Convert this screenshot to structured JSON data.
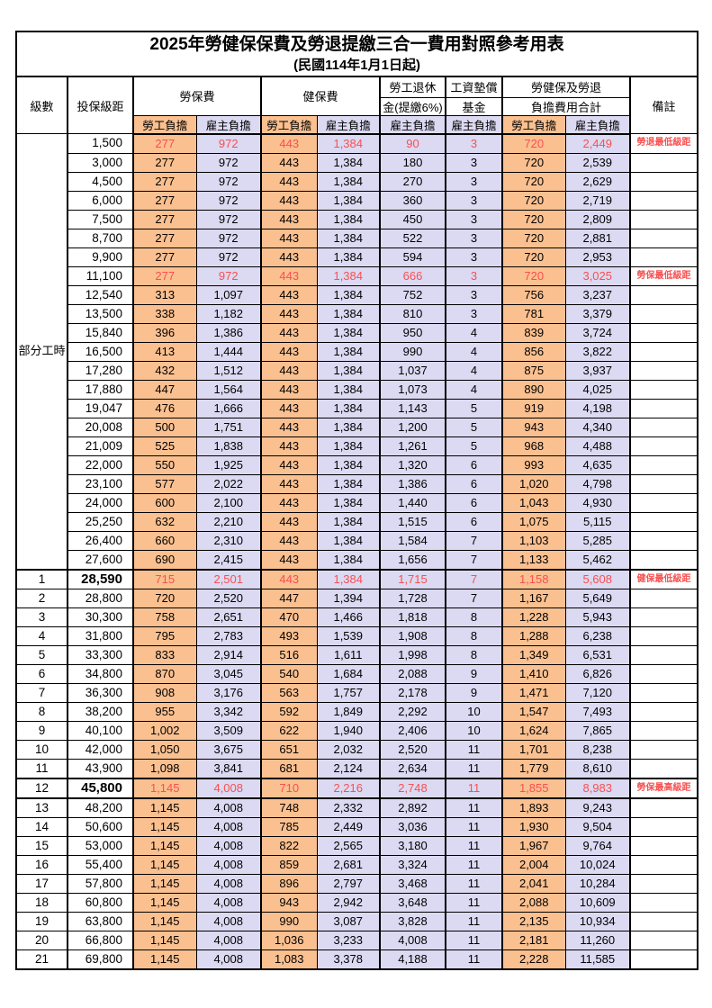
{
  "title": "2025年勞健保保費及勞退提繳三合一費用對照參考用表",
  "subtitle": "(民國114年1月1日起)",
  "colors": {
    "employee_col_bg": "#FAC090",
    "employer_col_bg": "#DCD9F2",
    "highlight_red": "#F85050",
    "border": "#000000"
  },
  "header": {
    "level": "級數",
    "bracket": "投保級距",
    "labor_group": "勞保費",
    "health_group": "健保費",
    "pension_line1": "勞工退休",
    "pension_line2": "金(提繳6%)",
    "wage_fund_line1": "工資墊償",
    "wage_fund_line2": "基金",
    "total_line1": "勞健保及勞退",
    "total_line2": "負擔費用合計",
    "remark": "備註",
    "employee": "勞工負擔",
    "employer": "雇主負擔"
  },
  "section": {
    "label": "部分工時",
    "rowspan": 23
  },
  "rows": [
    {
      "l": "",
      "b": "1,500",
      "v": [
        "277",
        "972",
        "443",
        "1,384",
        "90",
        "3",
        "720",
        "2,449"
      ],
      "r": "勞退最低級距",
      "red": true
    },
    {
      "l": "",
      "b": "3,000",
      "v": [
        "277",
        "972",
        "443",
        "1,384",
        "180",
        "3",
        "720",
        "2,539"
      ],
      "r": ""
    },
    {
      "l": "",
      "b": "4,500",
      "v": [
        "277",
        "972",
        "443",
        "1,384",
        "270",
        "3",
        "720",
        "2,629"
      ],
      "r": ""
    },
    {
      "l": "",
      "b": "6,000",
      "v": [
        "277",
        "972",
        "443",
        "1,384",
        "360",
        "3",
        "720",
        "2,719"
      ],
      "r": ""
    },
    {
      "l": "",
      "b": "7,500",
      "v": [
        "277",
        "972",
        "443",
        "1,384",
        "450",
        "3",
        "720",
        "2,809"
      ],
      "r": ""
    },
    {
      "l": "",
      "b": "8,700",
      "v": [
        "277",
        "972",
        "443",
        "1,384",
        "522",
        "3",
        "720",
        "2,881"
      ],
      "r": ""
    },
    {
      "l": "",
      "b": "9,900",
      "v": [
        "277",
        "972",
        "443",
        "1,384",
        "594",
        "3",
        "720",
        "2,953"
      ],
      "r": ""
    },
    {
      "l": "",
      "b": "11,100",
      "v": [
        "277",
        "972",
        "443",
        "1,384",
        "666",
        "3",
        "720",
        "3,025"
      ],
      "r": "勞保最低級距",
      "red": true
    },
    {
      "l": "",
      "b": "12,540",
      "v": [
        "313",
        "1,097",
        "443",
        "1,384",
        "752",
        "3",
        "756",
        "3,237"
      ],
      "r": ""
    },
    {
      "l": "",
      "b": "13,500",
      "v": [
        "338",
        "1,182",
        "443",
        "1,384",
        "810",
        "3",
        "781",
        "3,379"
      ],
      "r": ""
    },
    {
      "l": "",
      "b": "15,840",
      "v": [
        "396",
        "1,386",
        "443",
        "1,384",
        "950",
        "4",
        "839",
        "3,724"
      ],
      "r": ""
    },
    {
      "l": "",
      "b": "16,500",
      "v": [
        "413",
        "1,444",
        "443",
        "1,384",
        "990",
        "4",
        "856",
        "3,822"
      ],
      "r": ""
    },
    {
      "l": "",
      "b": "17,280",
      "v": [
        "432",
        "1,512",
        "443",
        "1,384",
        "1,037",
        "4",
        "875",
        "3,937"
      ],
      "r": ""
    },
    {
      "l": "",
      "b": "17,880",
      "v": [
        "447",
        "1,564",
        "443",
        "1,384",
        "1,073",
        "4",
        "890",
        "4,025"
      ],
      "r": ""
    },
    {
      "l": "",
      "b": "19,047",
      "v": [
        "476",
        "1,666",
        "443",
        "1,384",
        "1,143",
        "5",
        "919",
        "4,198"
      ],
      "r": ""
    },
    {
      "l": "",
      "b": "20,008",
      "v": [
        "500",
        "1,751",
        "443",
        "1,384",
        "1,200",
        "5",
        "943",
        "4,340"
      ],
      "r": ""
    },
    {
      "l": "",
      "b": "21,009",
      "v": [
        "525",
        "1,838",
        "443",
        "1,384",
        "1,261",
        "5",
        "968",
        "4,488"
      ],
      "r": ""
    },
    {
      "l": "",
      "b": "22,000",
      "v": [
        "550",
        "1,925",
        "443",
        "1,384",
        "1,320",
        "6",
        "993",
        "4,635"
      ],
      "r": ""
    },
    {
      "l": "",
      "b": "23,100",
      "v": [
        "577",
        "2,022",
        "443",
        "1,384",
        "1,386",
        "6",
        "1,020",
        "4,798"
      ],
      "r": ""
    },
    {
      "l": "",
      "b": "24,000",
      "v": [
        "600",
        "2,100",
        "443",
        "1,384",
        "1,440",
        "6",
        "1,043",
        "4,930"
      ],
      "r": ""
    },
    {
      "l": "",
      "b": "25,250",
      "v": [
        "632",
        "2,210",
        "443",
        "1,384",
        "1,515",
        "6",
        "1,075",
        "5,115"
      ],
      "r": ""
    },
    {
      "l": "",
      "b": "26,400",
      "v": [
        "660",
        "2,310",
        "443",
        "1,384",
        "1,584",
        "7",
        "1,103",
        "5,285"
      ],
      "r": ""
    },
    {
      "l": "",
      "b": "27,600",
      "v": [
        "690",
        "2,415",
        "443",
        "1,384",
        "1,656",
        "7",
        "1,133",
        "5,462"
      ],
      "r": ""
    },
    {
      "l": "1",
      "b": "28,590",
      "v": [
        "715",
        "2,501",
        "443",
        "1,384",
        "1,715",
        "7",
        "1,158",
        "5,608"
      ],
      "r": "健保最低級距",
      "red": true,
      "bold": true,
      "tt": true
    },
    {
      "l": "2",
      "b": "28,800",
      "v": [
        "720",
        "2,520",
        "447",
        "1,394",
        "1,728",
        "7",
        "1,167",
        "5,649"
      ],
      "r": ""
    },
    {
      "l": "3",
      "b": "30,300",
      "v": [
        "758",
        "2,651",
        "470",
        "1,466",
        "1,818",
        "8",
        "1,228",
        "5,943"
      ],
      "r": ""
    },
    {
      "l": "4",
      "b": "31,800",
      "v": [
        "795",
        "2,783",
        "493",
        "1,539",
        "1,908",
        "8",
        "1,288",
        "6,238"
      ],
      "r": ""
    },
    {
      "l": "5",
      "b": "33,300",
      "v": [
        "833",
        "2,914",
        "516",
        "1,611",
        "1,998",
        "8",
        "1,349",
        "6,531"
      ],
      "r": ""
    },
    {
      "l": "6",
      "b": "34,800",
      "v": [
        "870",
        "3,045",
        "540",
        "1,684",
        "2,088",
        "9",
        "1,410",
        "6,826"
      ],
      "r": ""
    },
    {
      "l": "7",
      "b": "36,300",
      "v": [
        "908",
        "3,176",
        "563",
        "1,757",
        "2,178",
        "9",
        "1,471",
        "7,120"
      ],
      "r": ""
    },
    {
      "l": "8",
      "b": "38,200",
      "v": [
        "955",
        "3,342",
        "592",
        "1,849",
        "2,292",
        "10",
        "1,547",
        "7,493"
      ],
      "r": ""
    },
    {
      "l": "9",
      "b": "40,100",
      "v": [
        "1,002",
        "3,509",
        "622",
        "1,940",
        "2,406",
        "10",
        "1,624",
        "7,865"
      ],
      "r": ""
    },
    {
      "l": "10",
      "b": "42,000",
      "v": [
        "1,050",
        "3,675",
        "651",
        "2,032",
        "2,520",
        "11",
        "1,701",
        "8,238"
      ],
      "r": ""
    },
    {
      "l": "11",
      "b": "43,900",
      "v": [
        "1,098",
        "3,841",
        "681",
        "2,124",
        "2,634",
        "11",
        "1,779",
        "8,610"
      ],
      "r": ""
    },
    {
      "l": "12",
      "b": "45,800",
      "v": [
        "1,145",
        "4,008",
        "710",
        "2,216",
        "2,748",
        "11",
        "1,855",
        "8,983"
      ],
      "r": "勞保最高級距",
      "red": true,
      "bold": true,
      "tt": true,
      "tb": true
    },
    {
      "l": "13",
      "b": "48,200",
      "v": [
        "1,145",
        "4,008",
        "748",
        "2,332",
        "2,892",
        "11",
        "1,893",
        "9,243"
      ],
      "r": ""
    },
    {
      "l": "14",
      "b": "50,600",
      "v": [
        "1,145",
        "4,008",
        "785",
        "2,449",
        "3,036",
        "11",
        "1,930",
        "9,504"
      ],
      "r": ""
    },
    {
      "l": "15",
      "b": "53,000",
      "v": [
        "1,145",
        "4,008",
        "822",
        "2,565",
        "3,180",
        "11",
        "1,967",
        "9,764"
      ],
      "r": ""
    },
    {
      "l": "16",
      "b": "55,400",
      "v": [
        "1,145",
        "4,008",
        "859",
        "2,681",
        "3,324",
        "11",
        "2,004",
        "10,024"
      ],
      "r": ""
    },
    {
      "l": "17",
      "b": "57,800",
      "v": [
        "1,145",
        "4,008",
        "896",
        "2,797",
        "3,468",
        "11",
        "2,041",
        "10,284"
      ],
      "r": ""
    },
    {
      "l": "18",
      "b": "60,800",
      "v": [
        "1,145",
        "4,008",
        "943",
        "2,942",
        "3,648",
        "11",
        "2,088",
        "10,609"
      ],
      "r": ""
    },
    {
      "l": "19",
      "b": "63,800",
      "v": [
        "1,145",
        "4,008",
        "990",
        "3,087",
        "3,828",
        "11",
        "2,135",
        "10,934"
      ],
      "r": ""
    },
    {
      "l": "20",
      "b": "66,800",
      "v": [
        "1,145",
        "4,008",
        "1,036",
        "3,233",
        "4,008",
        "11",
        "2,181",
        "11,260"
      ],
      "r": ""
    },
    {
      "l": "21",
      "b": "69,800",
      "v": [
        "1,145",
        "4,008",
        "1,083",
        "3,378",
        "4,188",
        "11",
        "2,228",
        "11,585"
      ],
      "r": ""
    }
  ]
}
